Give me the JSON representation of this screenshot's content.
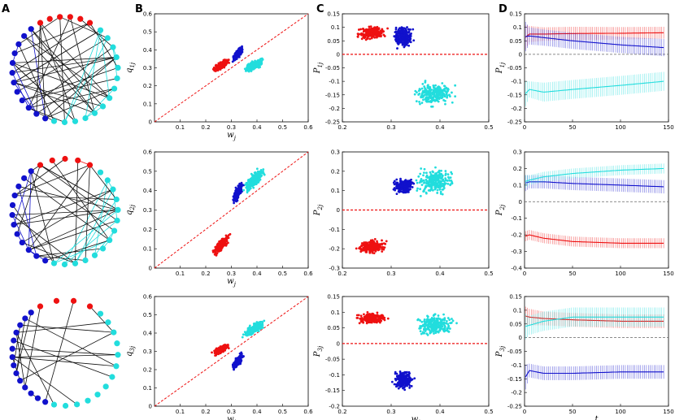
{
  "panel_labels": [
    "A",
    "B",
    "C",
    "D"
  ],
  "colors": {
    "red": "#ee1111",
    "blue": "#1111cc",
    "cyan": "#22dddd",
    "black": "#111111"
  },
  "chart_data": [
    {
      "panel": "A",
      "row": 1,
      "type": "network",
      "communities": [
        {
          "color": "red",
          "nodes": 6
        },
        {
          "color": "cyan",
          "nodes": 14
        },
        {
          "color": "blue",
          "nodes": 12
        }
      ]
    },
    {
      "panel": "A",
      "row": 2,
      "type": "network",
      "communities": [
        {
          "color": "red",
          "nodes": 5
        },
        {
          "color": "cyan",
          "nodes": 14
        },
        {
          "color": "blue",
          "nodes": 12
        }
      ]
    },
    {
      "panel": "A",
      "row": 3,
      "type": "network",
      "communities": [
        {
          "color": "red",
          "nodes": 4
        },
        {
          "color": "cyan",
          "nodes": 13
        },
        {
          "color": "blue",
          "nodes": 14
        }
      ]
    },
    {
      "panel": "B",
      "row": 1,
      "type": "scatter",
      "xlabel": "w_j",
      "ylabel": "q_1j",
      "xlim": [
        0,
        0.6
      ],
      "ylim": [
        0,
        0.6
      ],
      "xticks": [
        0.1,
        0.2,
        0.3,
        0.4,
        0.5,
        0.6
      ],
      "yticks": [
        0,
        0.1,
        0.2,
        0.3,
        0.4,
        0.5,
        0.6
      ],
      "reference_line": "y = x",
      "series": [
        {
          "name": "red",
          "x_range": [
            0.21,
            0.31
          ],
          "y_range": [
            0.26,
            0.37
          ],
          "n": 220
        },
        {
          "name": "blue",
          "x_range": [
            0.29,
            0.36
          ],
          "y_range": [
            0.31,
            0.44
          ],
          "n": 220
        },
        {
          "name": "cyan",
          "x_range": [
            0.32,
            0.46
          ],
          "y_range": [
            0.25,
            0.38
          ],
          "n": 240
        }
      ]
    },
    {
      "panel": "B",
      "row": 2,
      "type": "scatter",
      "xlabel": "w_j",
      "ylabel": "q_2j",
      "xlim": [
        0,
        0.6
      ],
      "ylim": [
        0,
        0.6
      ],
      "xticks": [
        0.1,
        0.2,
        0.3,
        0.4,
        0.5,
        0.6
      ],
      "yticks": [
        0,
        0.1,
        0.2,
        0.3,
        0.4,
        0.5,
        0.6
      ],
      "reference_line": "y = x",
      "series": [
        {
          "name": "red",
          "x_range": [
            0.21,
            0.31
          ],
          "y_range": [
            0.04,
            0.2
          ],
          "n": 220
        },
        {
          "name": "blue",
          "x_range": [
            0.29,
            0.36
          ],
          "y_range": [
            0.3,
            0.48
          ],
          "n": 220
        },
        {
          "name": "cyan",
          "x_range": [
            0.32,
            0.46
          ],
          "y_range": [
            0.35,
            0.56
          ],
          "n": 240
        }
      ]
    },
    {
      "panel": "B",
      "row": 3,
      "type": "scatter",
      "xlabel": "w_j",
      "ylabel": "q_3j",
      "xlim": [
        0,
        0.6
      ],
      "ylim": [
        0,
        0.6
      ],
      "xticks": [
        0.1,
        0.2,
        0.3,
        0.4,
        0.5,
        0.6
      ],
      "yticks": [
        0,
        0.1,
        0.2,
        0.3,
        0.4,
        0.5,
        0.6
      ],
      "reference_line": "y = x",
      "series": [
        {
          "name": "red",
          "x_range": [
            0.21,
            0.31
          ],
          "y_range": [
            0.26,
            0.36
          ],
          "n": 220
        },
        {
          "name": "blue",
          "x_range": [
            0.29,
            0.36
          ],
          "y_range": [
            0.18,
            0.31
          ],
          "n": 220
        },
        {
          "name": "cyan",
          "x_range": [
            0.32,
            0.46
          ],
          "y_range": [
            0.35,
            0.5
          ],
          "n": 240
        }
      ]
    },
    {
      "panel": "C",
      "row": 1,
      "type": "scatter",
      "xlabel": "",
      "ylabel": "P_1j",
      "xlim": [
        0.2,
        0.5
      ],
      "ylim": [
        -0.25,
        0.15
      ],
      "xticks": [
        0.2,
        0.3,
        0.4,
        0.5
      ],
      "yticks": [
        -0.25,
        -0.2,
        -0.15,
        -0.1,
        -0.05,
        0,
        0.05,
        0.1,
        0.15
      ],
      "reference_line": "y = 0",
      "series": [
        {
          "name": "red",
          "x_range": [
            0.21,
            0.31
          ],
          "y_range": [
            0.04,
            0.12
          ],
          "n": 220
        },
        {
          "name": "blue",
          "x_range": [
            0.29,
            0.36
          ],
          "y_range": [
            0.0,
            0.13
          ],
          "n": 220
        },
        {
          "name": "cyan",
          "x_range": [
            0.32,
            0.46
          ],
          "y_range": [
            -0.22,
            -0.07
          ],
          "n": 240
        }
      ]
    },
    {
      "panel": "C",
      "row": 2,
      "type": "scatter",
      "xlabel": "",
      "ylabel": "P_2j",
      "xlim": [
        0.2,
        0.5
      ],
      "ylim": [
        -0.3,
        0.3
      ],
      "xticks": [
        0.2,
        0.3,
        0.4,
        0.5
      ],
      "yticks": [
        -0.3,
        -0.2,
        -0.1,
        0,
        0.1,
        0.2,
        0.3
      ],
      "reference_line": "y = 0",
      "series": [
        {
          "name": "red",
          "x_range": [
            0.21,
            0.31
          ],
          "y_range": [
            -0.25,
            -0.13
          ],
          "n": 220
        },
        {
          "name": "blue",
          "x_range": [
            0.29,
            0.36
          ],
          "y_range": [
            0.06,
            0.19
          ],
          "n": 220
        },
        {
          "name": "cyan",
          "x_range": [
            0.32,
            0.46
          ],
          "y_range": [
            0.03,
            0.27
          ],
          "n": 240
        }
      ]
    },
    {
      "panel": "C",
      "row": 3,
      "type": "scatter",
      "xlabel": "w_j",
      "ylabel": "P_3j",
      "xlim": [
        0.2,
        0.5
      ],
      "ylim": [
        -0.2,
        0.15
      ],
      "xticks": [
        0.2,
        0.3,
        0.4,
        0.5
      ],
      "yticks": [
        -0.2,
        -0.15,
        -0.1,
        -0.05,
        0,
        0.05,
        0.1,
        0.15
      ],
      "reference_line": "y = 0",
      "series": [
        {
          "name": "red",
          "x_range": [
            0.21,
            0.31
          ],
          "y_range": [
            0.05,
            0.11
          ],
          "n": 220
        },
        {
          "name": "blue",
          "x_range": [
            0.29,
            0.36
          ],
          "y_range": [
            -0.17,
            -0.06
          ],
          "n": 220
        },
        {
          "name": "cyan",
          "x_range": [
            0.32,
            0.46
          ],
          "y_range": [
            0.0,
            0.12
          ],
          "n": 240
        }
      ]
    },
    {
      "panel": "D",
      "row": 1,
      "type": "line",
      "xlabel": "",
      "ylabel": "P_1j",
      "xlim": [
        0,
        150
      ],
      "ylim": [
        -0.25,
        0.15
      ],
      "xticks": [
        0,
        50,
        100,
        150
      ],
      "yticks": [
        -0.25,
        -0.2,
        -0.15,
        -0.1,
        -0.05,
        0,
        0.05,
        0.1,
        0.15
      ],
      "reference_line": "y = 0",
      "error_bars": true,
      "series": [
        {
          "name": "red",
          "t": [
            0,
            5,
            20,
            50,
            100,
            145
          ],
          "mean": [
            0.06,
            0.075,
            0.075,
            0.077,
            0.078,
            0.08
          ],
          "half_width": [
            0.05,
            0.03,
            0.025,
            0.025,
            0.023,
            0.022
          ]
        },
        {
          "name": "blue",
          "t": [
            0,
            5,
            20,
            50,
            100,
            145
          ],
          "mean": [
            0.065,
            0.068,
            0.062,
            0.05,
            0.035,
            0.025
          ],
          "half_width": [
            0.06,
            0.032,
            0.03,
            0.03,
            0.03,
            0.032
          ]
        },
        {
          "name": "cyan",
          "t": [
            0,
            5,
            20,
            50,
            100,
            145
          ],
          "mean": [
            -0.15,
            -0.13,
            -0.14,
            -0.13,
            -0.115,
            -0.1
          ],
          "half_width": [
            0.05,
            0.03,
            0.035,
            0.035,
            0.035,
            0.035
          ]
        }
      ]
    },
    {
      "panel": "D",
      "row": 2,
      "type": "line",
      "xlabel": "",
      "ylabel": "P_2j",
      "xlim": [
        0,
        150
      ],
      "ylim": [
        -0.4,
        0.3
      ],
      "xticks": [
        0,
        50,
        100,
        150
      ],
      "yticks": [
        -0.4,
        -0.3,
        -0.2,
        -0.1,
        0,
        0.1,
        0.2,
        0.3
      ],
      "reference_line": "y = 0",
      "error_bars": true,
      "series": [
        {
          "name": "red",
          "t": [
            0,
            5,
            20,
            50,
            100,
            145
          ],
          "mean": [
            -0.21,
            -0.2,
            -0.22,
            -0.24,
            -0.25,
            -0.25
          ],
          "half_width": [
            0.03,
            0.03,
            0.03,
            0.03,
            0.03,
            0.03
          ]
        },
        {
          "name": "blue",
          "t": [
            0,
            5,
            20,
            50,
            100,
            145
          ],
          "mean": [
            0.11,
            0.12,
            0.12,
            0.11,
            0.1,
            0.09
          ],
          "half_width": [
            0.05,
            0.04,
            0.04,
            0.04,
            0.04,
            0.04
          ]
        },
        {
          "name": "cyan",
          "t": [
            0,
            5,
            20,
            50,
            100,
            145
          ],
          "mean": [
            0.12,
            0.13,
            0.15,
            0.17,
            0.19,
            0.2
          ],
          "half_width": [
            0.04,
            0.03,
            0.03,
            0.03,
            0.03,
            0.03
          ]
        }
      ]
    },
    {
      "panel": "D",
      "row": 3,
      "type": "line",
      "xlabel": "t",
      "ylabel": "P_3j",
      "xlim": [
        0,
        150
      ],
      "ylim": [
        -0.25,
        0.15
      ],
      "xticks": [
        0,
        50,
        100,
        150
      ],
      "yticks": [
        -0.25,
        -0.2,
        -0.15,
        -0.1,
        -0.05,
        0,
        0.05,
        0.1,
        0.15
      ],
      "reference_line": "y = 0",
      "error_bars": true,
      "series": [
        {
          "name": "red",
          "t": [
            0,
            5,
            20,
            50,
            100,
            145
          ],
          "mean": [
            0.08,
            0.075,
            0.07,
            0.065,
            0.06,
            0.06
          ],
          "half_width": [
            0.035,
            0.03,
            0.025,
            0.025,
            0.025,
            0.025
          ]
        },
        {
          "name": "blue",
          "t": [
            0,
            5,
            20,
            50,
            100,
            145
          ],
          "mean": [
            -0.15,
            -0.12,
            -0.13,
            -0.13,
            -0.125,
            -0.125
          ],
          "half_width": [
            0.05,
            0.025,
            0.025,
            0.025,
            0.025,
            0.025
          ]
        },
        {
          "name": "cyan",
          "t": [
            0,
            5,
            20,
            50,
            100,
            145
          ],
          "mean": [
            0.04,
            0.045,
            0.06,
            0.075,
            0.075,
            0.075
          ],
          "half_width": [
            0.05,
            0.035,
            0.035,
            0.035,
            0.035,
            0.035
          ]
        }
      ]
    }
  ]
}
